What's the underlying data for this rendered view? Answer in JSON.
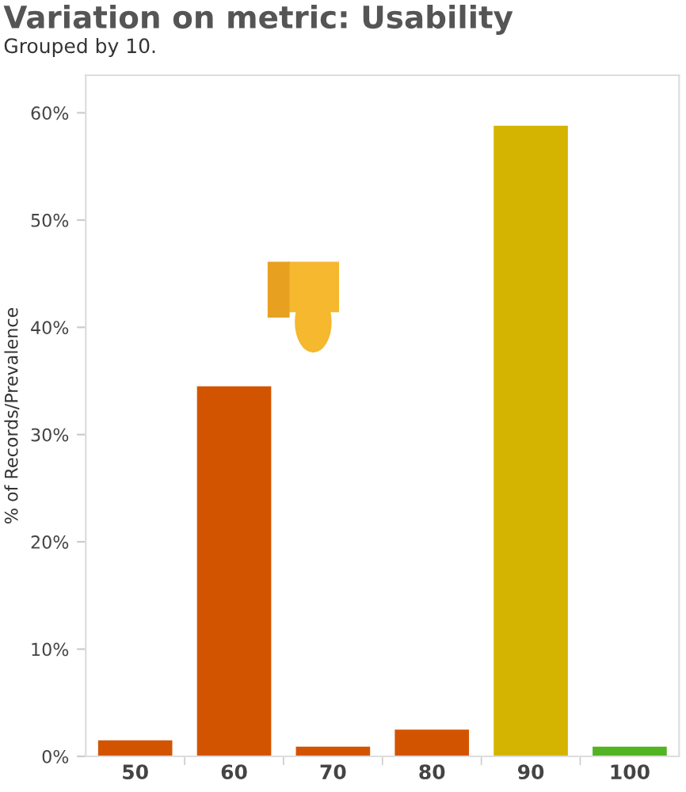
{
  "chart_data": {
    "type": "bar",
    "title": "Variation on metric: Usability",
    "subtitle": "Grouped by 10.",
    "ylabel": "% of Records/Prevalence",
    "categories": [
      "50",
      "60",
      "70",
      "80",
      "90",
      "100"
    ],
    "values": [
      1.5,
      34.5,
      0.9,
      2.5,
      58.8,
      0.9
    ],
    "colors": [
      "#d35400",
      "#d35400",
      "#d35400",
      "#d35400",
      "#d4b400",
      "#52b323"
    ],
    "ylim": [
      0,
      63.5
    ],
    "yticks": [
      {
        "value": 0,
        "label": "0%"
      },
      {
        "value": 10,
        "label": "10%"
      },
      {
        "value": 20,
        "label": "20%"
      },
      {
        "value": 30,
        "label": "30%"
      },
      {
        "value": 40,
        "label": "40%"
      },
      {
        "value": 50,
        "label": "50%"
      },
      {
        "value": 60,
        "label": "60%"
      }
    ],
    "grid": false,
    "legend": false
  }
}
